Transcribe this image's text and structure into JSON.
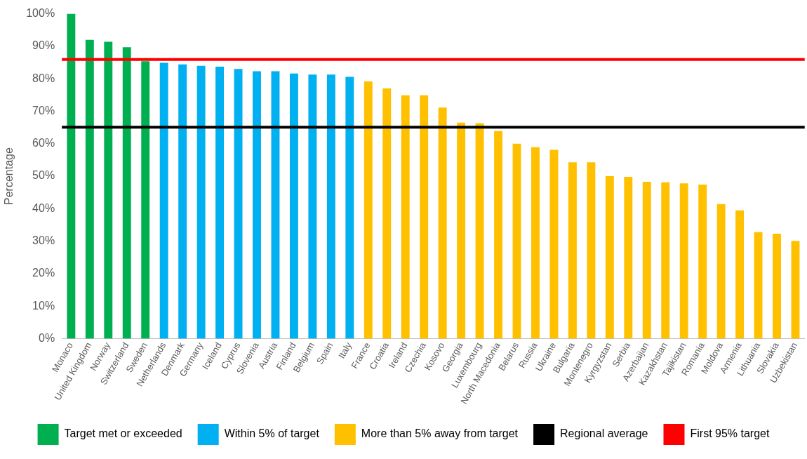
{
  "chart_data": {
    "type": "bar",
    "ylabel": "Percentage",
    "categories": [
      "Monaco",
      "United Kingdom",
      "Norway",
      "Switzerland",
      "Sweden",
      "Netherlands",
      "Denmark",
      "Germany",
      "Iceland",
      "Cyprus",
      "Slovenia",
      "Austria",
      "Finland",
      "Belgium",
      "Spain",
      "Italy",
      "France",
      "Croatia",
      "Ireland",
      "Czechia",
      "Kosovo",
      "Georgia",
      "Luxembourg",
      "North Macedonia",
      "Belarus",
      "Russia",
      "Ukraine",
      "Bulgaria",
      "Montenegro",
      "Kyrgyzstan",
      "Serbia",
      "Azerbaijan",
      "Kazakhstan",
      "Tajikistan",
      "Romania",
      "Moldova",
      "Armenia",
      "Lithuania",
      "Slovakia",
      "Uzbekistan"
    ],
    "series": [
      {
        "name": "Target met or exceeded",
        "color": "#00b050",
        "values": [
          100,
          92,
          91.4,
          89.7,
          85.4,
          null,
          null,
          null,
          null,
          null,
          null,
          null,
          null,
          null,
          null,
          null,
          null,
          null,
          null,
          null,
          null,
          null,
          null,
          null,
          null,
          null,
          null,
          null,
          null,
          null,
          null,
          null,
          null,
          null,
          null,
          null,
          null,
          null,
          null,
          null
        ]
      },
      {
        "name": "Within 5% of target",
        "color": "#00b0f0",
        "values": [
          null,
          null,
          null,
          null,
          null,
          84.9,
          84.4,
          84,
          83.7,
          83,
          82.3,
          82.3,
          81.6,
          81.3,
          81.3,
          80.6,
          null,
          null,
          null,
          null,
          null,
          null,
          null,
          null,
          null,
          null,
          null,
          null,
          null,
          null,
          null,
          null,
          null,
          null,
          null,
          null,
          null,
          null,
          null,
          null
        ]
      },
      {
        "name": "More than 5% away from target",
        "color": "#ffc000",
        "values": [
          null,
          null,
          null,
          null,
          null,
          null,
          null,
          null,
          null,
          null,
          null,
          null,
          null,
          null,
          null,
          null,
          79.2,
          77,
          74.9,
          74.9,
          71.1,
          66.5,
          66.3,
          63.9,
          60,
          58.9,
          58.1,
          54.3,
          54.3,
          50,
          49.8,
          48.3,
          48.1,
          47.8,
          47.4,
          41.4,
          39.5,
          32.8,
          32.3,
          30.1
        ]
      }
    ],
    "ref_lines": [
      {
        "axis": "y",
        "value": 65.1,
        "label": "Regional average",
        "color": "#000000"
      },
      {
        "axis": "y",
        "value": 85.9,
        "label": "First 95% target",
        "color": "#ff0000"
      }
    ],
    "ylim": [
      0,
      100
    ],
    "yticks": [
      {
        "value": 0,
        "label": "0%"
      },
      {
        "value": 10,
        "label": "10%"
      },
      {
        "value": 20,
        "label": "20%"
      },
      {
        "value": 30,
        "label": "30%"
      },
      {
        "value": 40,
        "label": "40%"
      },
      {
        "value": 50,
        "label": "50%"
      },
      {
        "value": 60,
        "label": "60%"
      },
      {
        "value": 70,
        "label": "70%"
      },
      {
        "value": 80,
        "label": "80%"
      },
      {
        "value": 90,
        "label": "90%"
      },
      {
        "value": 100,
        "label": "100%"
      }
    ],
    "grid": false,
    "legend": "bottom"
  }
}
